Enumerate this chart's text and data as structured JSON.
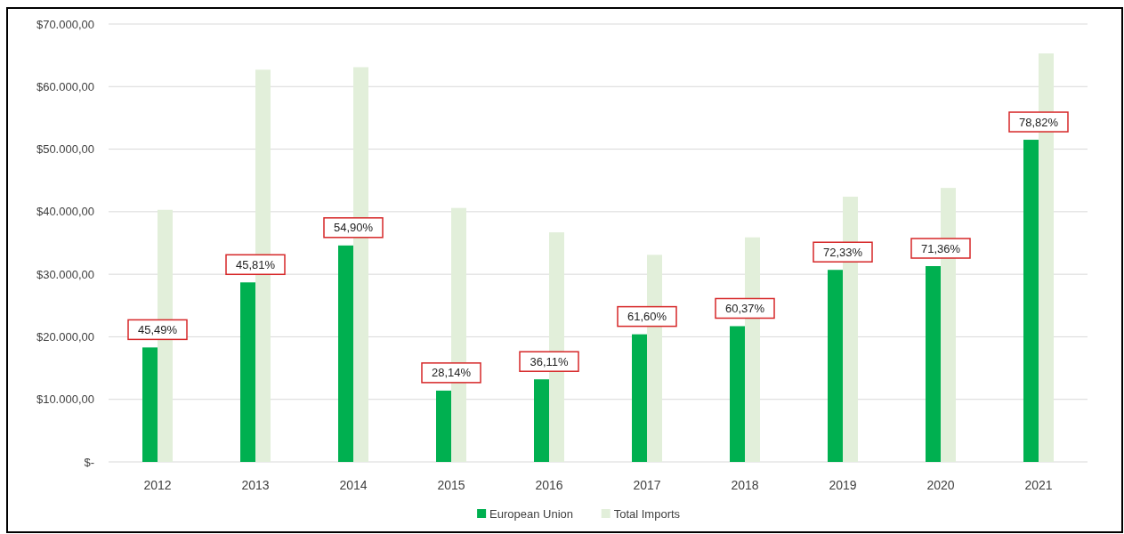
{
  "chart_data": {
    "type": "bar",
    "categories": [
      "2012",
      "2013",
      "2014",
      "2015",
      "2016",
      "2017",
      "2018",
      "2019",
      "2020",
      "2021"
    ],
    "series": [
      {
        "name": "European Union",
        "color": "#00b050",
        "values": [
          18300,
          28700,
          34600,
          11400,
          13200,
          20400,
          21700,
          30700,
          31300,
          51500
        ]
      },
      {
        "name": "Total Imports",
        "color": "#e2efda",
        "values": [
          40300,
          62700,
          63100,
          40600,
          36700,
          33100,
          35900,
          42400,
          43800,
          65300
        ]
      }
    ],
    "ylim": [
      0,
      70000
    ],
    "yticks": [
      {
        "value": 0,
        "label": "$-"
      },
      {
        "value": 10000,
        "label": "$10.000,00"
      },
      {
        "value": 20000,
        "label": "$20.000,00"
      },
      {
        "value": 30000,
        "label": "$30.000,00"
      },
      {
        "value": 40000,
        "label": "$40.000,00"
      },
      {
        "value": 50000,
        "label": "$50.000,00"
      },
      {
        "value": 60000,
        "label": "$60.000,00"
      },
      {
        "value": 70000,
        "label": "$70.000,00"
      }
    ],
    "grid": "y",
    "legend": "bottom",
    "annotations": [
      {
        "text": "45,49%",
        "x": "2012",
        "y": 18300
      },
      {
        "text": "45,81%",
        "x": "2013",
        "y": 28700
      },
      {
        "text": "54,90%",
        "x": "2014",
        "y": 34600
      },
      {
        "text": "28,14%",
        "x": "2015",
        "y": 11400
      },
      {
        "text": "36,11%",
        "x": "2016",
        "y": 13200
      },
      {
        "text": "61,60%",
        "x": "2017",
        "y": 20400
      },
      {
        "text": "60,37%",
        "x": "2018",
        "y": 21700
      },
      {
        "text": "72,33%",
        "x": "2019",
        "y": 30700
      },
      {
        "text": "71,36%",
        "x": "2020",
        "y": 31300
      },
      {
        "text": "78,82%",
        "x": "2021",
        "y": 51500
      }
    ]
  }
}
